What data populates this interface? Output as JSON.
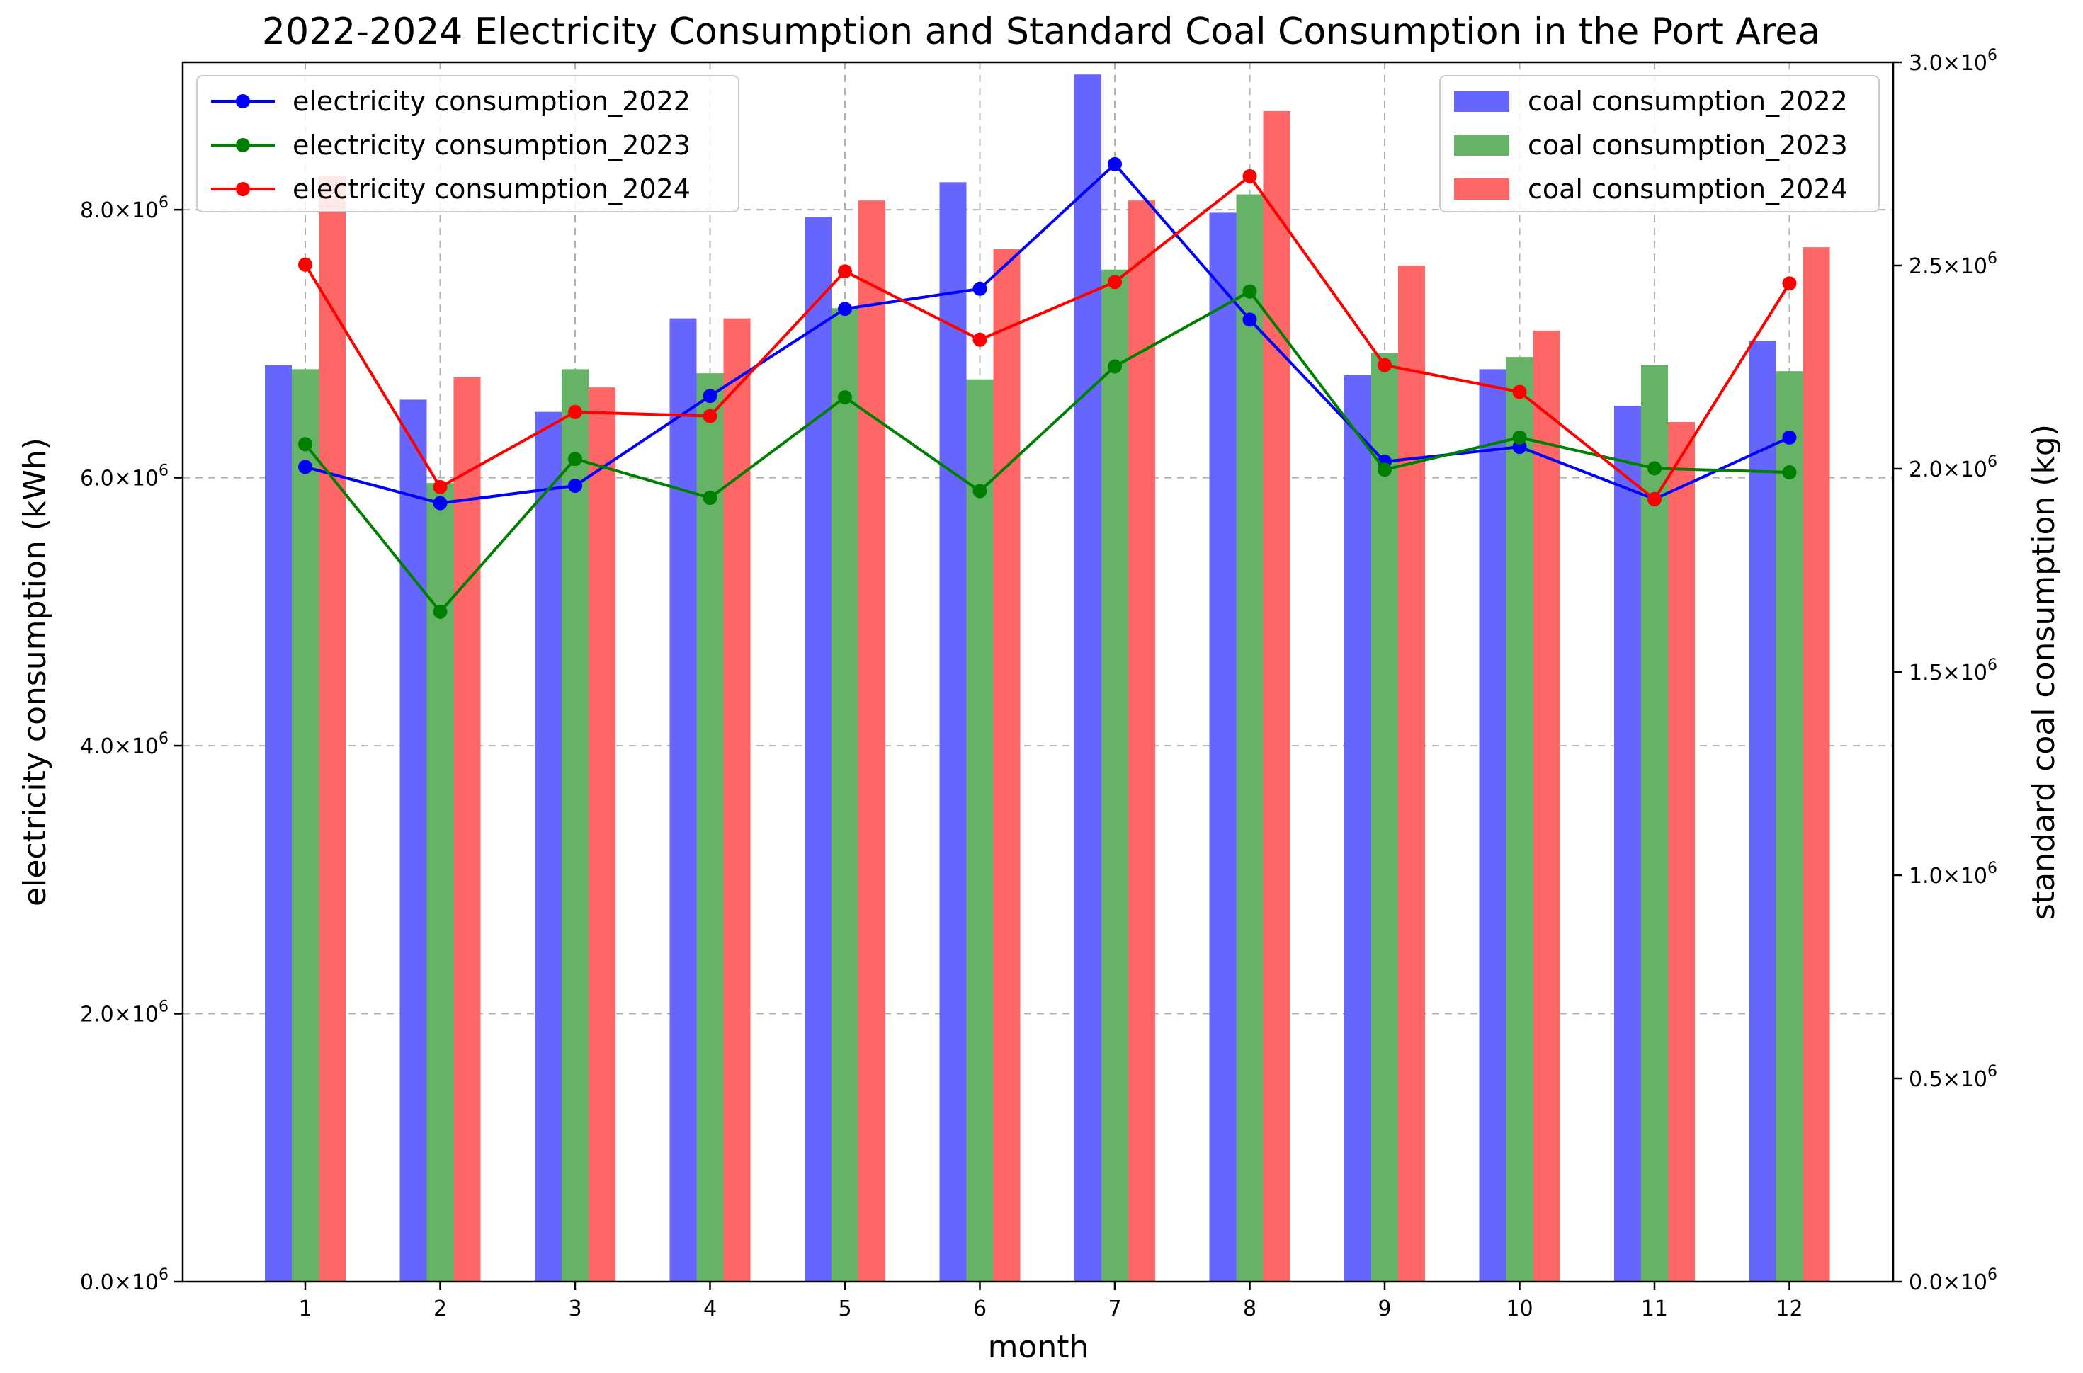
{
  "chart_data": {
    "type": "bar+line",
    "title": "2022-2024 Electricity Consumption and Standard Coal Consumption in the Port Area",
    "xlabel": "month",
    "ylabel_left": "electricity consumption (kWh)",
    "ylabel_right": "standard coal consumption (kg)",
    "categories": [
      "1",
      "2",
      "3",
      "4",
      "5",
      "6",
      "7",
      "8",
      "9",
      "10",
      "11",
      "12"
    ],
    "left_axis": {
      "ylim": [
        0,
        9100000
      ],
      "ticks": [
        0,
        2000000,
        4000000,
        6000000,
        8000000
      ],
      "tick_labels": [
        {
          "mantissa": "0.0",
          "base": "×10",
          "exp": "6"
        },
        {
          "mantissa": "2.0",
          "base": "×10",
          "exp": "6"
        },
        {
          "mantissa": "4.0",
          "base": "×10",
          "exp": "6"
        },
        {
          "mantissa": "6.0",
          "base": "×10",
          "exp": "6"
        },
        {
          "mantissa": "8.0",
          "base": "×10",
          "exp": "6"
        }
      ]
    },
    "right_axis": {
      "ylim": [
        0,
        3000000
      ],
      "ticks": [
        0,
        500000,
        1000000,
        1500000,
        2000000,
        2500000,
        3000000
      ],
      "tick_labels": [
        {
          "mantissa": "0.0",
          "base": "×10",
          "exp": "6"
        },
        {
          "mantissa": "0.5",
          "base": "×10",
          "exp": "6"
        },
        {
          "mantissa": "1.0",
          "base": "×10",
          "exp": "6"
        },
        {
          "mantissa": "1.5",
          "base": "×10",
          "exp": "6"
        },
        {
          "mantissa": "2.0",
          "base": "×10",
          "exp": "6"
        },
        {
          "mantissa": "2.5",
          "base": "×10",
          "exp": "6"
        },
        {
          "mantissa": "3.0",
          "base": "×10",
          "exp": "6"
        }
      ]
    },
    "bar_series": [
      {
        "name": "coal consumption_2022",
        "color": "#6666ff",
        "values": [
          2255000,
          2170000,
          2140000,
          2370000,
          2620000,
          2705000,
          2970000,
          2630000,
          2230000,
          2245000,
          2155000,
          2315000
        ]
      },
      {
        "name": "coal consumption_2023",
        "color": "#66b266",
        "values": [
          2245000,
          1965000,
          2245000,
          2235000,
          2395000,
          2220000,
          2490000,
          2675000,
          2285000,
          2275000,
          2255000,
          2240000
        ]
      },
      {
        "name": "coal consumption_2024",
        "color": "#ff6666",
        "values": [
          2720000,
          2225000,
          2200000,
          2370000,
          2660000,
          2540000,
          2660000,
          2880000,
          2500000,
          2340000,
          2115000,
          2545000
        ]
      }
    ],
    "line_series": [
      {
        "name": "electricity consumption_2022",
        "color": "#0000ff",
        "values": [
          6080000,
          5810000,
          5940000,
          6610000,
          7260000,
          7410000,
          8340000,
          7180000,
          6120000,
          6230000,
          5840000,
          6300000
        ]
      },
      {
        "name": "electricity consumption_2023",
        "color": "#008000",
        "values": [
          6250000,
          5000000,
          6140000,
          5850000,
          6600000,
          5900000,
          6830000,
          7390000,
          6060000,
          6300000,
          6070000,
          6040000
        ]
      },
      {
        "name": "electricity consumption_2024",
        "color": "#ff0000",
        "values": [
          7590000,
          5930000,
          6490000,
          6460000,
          7540000,
          7030000,
          7460000,
          8250000,
          6840000,
          6640000,
          5840000,
          7450000
        ]
      }
    ],
    "legends": {
      "lines_position": "top-left",
      "bars_position": "top-right"
    },
    "grid": true
  }
}
